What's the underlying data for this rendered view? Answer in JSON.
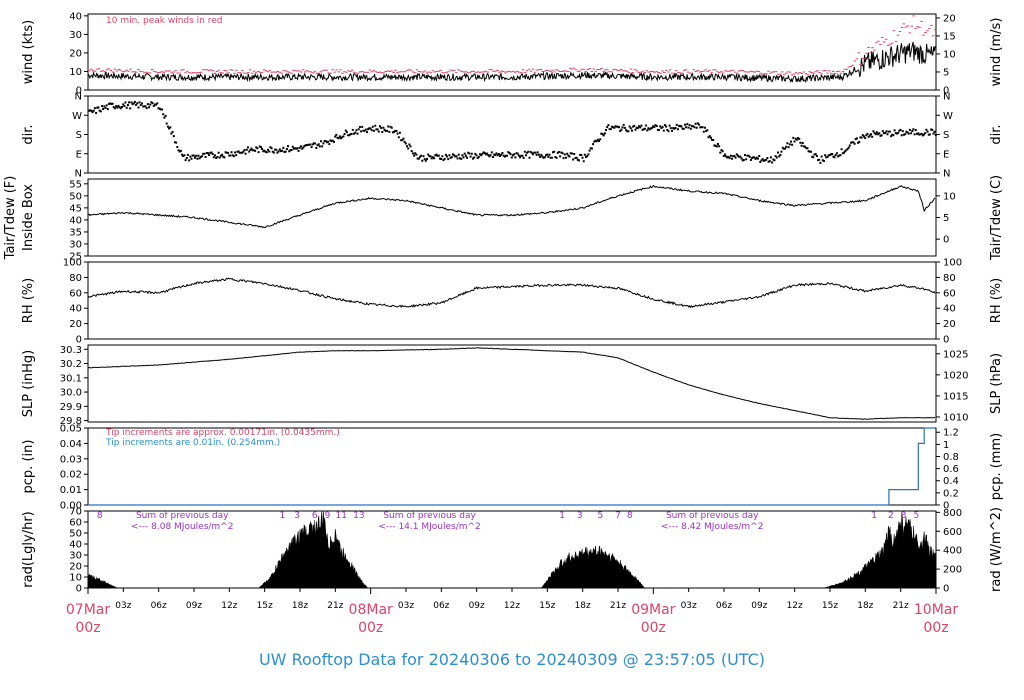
{
  "footer": {
    "title": "UW Rooftop Data for 20240306  to  20240309 @ 23:57:05  (UTC)"
  },
  "colors": {
    "data_line": "#000000",
    "peak_wind": "#dd4466",
    "precip_line": "#2b6fc0",
    "precip_note_red": "#dd4466",
    "precip_note_blue": "#2b8fd4",
    "day_label": "#dd4466",
    "footer": "#2b8fd4",
    "radiation_note": "#9933cc"
  },
  "x_axis": {
    "start": "2024-03-07T00:00Z",
    "end": "2024-03-10T00:00Z",
    "hour_ticks": [
      "03z",
      "06z",
      "09z",
      "12z",
      "15z",
      "18z",
      "21z"
    ],
    "days": [
      {
        "date": "07Mar",
        "hour": "00z"
      },
      {
        "date": "08Mar",
        "hour": "00z"
      },
      {
        "date": "09Mar",
        "hour": "00z"
      },
      {
        "date": "10Mar",
        "hour": "00z"
      }
    ]
  },
  "chart_data": [
    {
      "id": "wind",
      "type": "line",
      "ylabel_left": "wind (kts)",
      "ylabel_right": "wind (m/s)",
      "ylim": [
        0,
        41
      ],
      "left_ticks": [
        "0",
        "10",
        "20",
        "30",
        "40"
      ],
      "right_ticks": [
        "0",
        "5",
        "10",
        "15",
        "20"
      ],
      "annotation": "10 min. peak winds in red",
      "series": [
        {
          "name": "wind",
          "color": "#000000",
          "x": [
            "2024-03-07T00:00Z",
            "2024-03-07T06:00Z",
            "2024-03-07T12:00Z",
            "2024-03-07T18:00Z",
            "2024-03-08T00:00Z",
            "2024-03-08T06:00Z",
            "2024-03-08T12:00Z",
            "2024-03-08T18:00Z",
            "2024-03-09T00:00Z",
            "2024-03-09T06:00Z",
            "2024-03-09T12:00Z",
            "2024-03-09T16:00Z",
            "2024-03-09T18:00Z",
            "2024-03-09T20:00Z",
            "2024-03-09T22:00Z",
            "2024-03-09T23:55Z"
          ],
          "y": [
            8,
            7,
            7,
            7,
            7,
            7,
            7,
            8,
            7,
            7,
            6,
            7,
            14,
            18,
            21,
            18
          ]
        },
        {
          "name": "10 min. peak winds",
          "color": "#dd4466",
          "x": [
            "2024-03-07T00:00Z",
            "2024-03-07T06:00Z",
            "2024-03-07T12:00Z",
            "2024-03-07T18:00Z",
            "2024-03-08T00:00Z",
            "2024-03-08T06:00Z",
            "2024-03-08T12:00Z",
            "2024-03-08T18:00Z",
            "2024-03-09T00:00Z",
            "2024-03-09T06:00Z",
            "2024-03-09T12:00Z",
            "2024-03-09T16:00Z",
            "2024-03-09T18:00Z",
            "2024-03-09T20:00Z",
            "2024-03-09T22:00Z",
            "2024-03-09T23:55Z"
          ],
          "y": [
            11,
            10,
            10,
            10,
            10,
            10,
            10,
            11,
            10,
            10,
            9,
            10,
            20,
            28,
            36,
            30
          ]
        }
      ]
    },
    {
      "id": "dir",
      "type": "scatter",
      "ylabel_left": "dir.",
      "ylabel_right": "dir.",
      "ylim": [
        0,
        360
      ],
      "left_ticks": [
        "N",
        "E",
        "S",
        "W",
        "N"
      ],
      "right_ticks": [
        "N",
        "E",
        "S",
        "W",
        "N"
      ],
      "series": [
        {
          "name": "direction",
          "x": [
            "2024-03-07T00:00Z",
            "2024-03-07T01:00Z",
            "2024-03-07T02:00Z",
            "2024-03-07T04:00Z",
            "2024-03-07T06:00Z",
            "2024-03-07T08:00Z",
            "2024-03-07T10:00Z",
            "2024-03-07T12:00Z",
            "2024-03-07T14:00Z",
            "2024-03-07T16:00Z",
            "2024-03-07T18:00Z",
            "2024-03-07T20:00Z",
            "2024-03-07T22:00Z",
            "2024-03-08T00:00Z",
            "2024-03-08T02:00Z",
            "2024-03-08T04:00Z",
            "2024-03-08T08:00Z",
            "2024-03-08T12:00Z",
            "2024-03-08T16:00Z",
            "2024-03-08T18:00Z",
            "2024-03-08T20:00Z",
            "2024-03-08T22:00Z",
            "2024-03-09T00:00Z",
            "2024-03-09T02:00Z",
            "2024-03-09T04:00Z",
            "2024-03-09T06:00Z",
            "2024-03-09T08:00Z",
            "2024-03-09T10:00Z",
            "2024-03-09T12:00Z",
            "2024-03-09T14:00Z",
            "2024-03-09T16:00Z",
            "2024-03-09T18:00Z",
            "2024-03-09T20:00Z",
            "2024-03-09T22:00Z",
            "2024-03-09T23:55Z"
          ],
          "y": [
            280,
            300,
            315,
            318,
            315,
            70,
            80,
            90,
            110,
            110,
            115,
            140,
            190,
            210,
            200,
            70,
            80,
            85,
            85,
            70,
            210,
            210,
            210,
            210,
            220,
            80,
            70,
            60,
            160,
            60,
            100,
            180,
            185,
            190,
            190
          ]
        }
      ]
    },
    {
      "id": "tair",
      "type": "line",
      "ylabel_left": "Tair/Tdew (F)",
      "ylabel_left2": "Inside Box",
      "ylabel_right": "Tair/Tdew (C)",
      "ylim": [
        25,
        57
      ],
      "left_ticks": [
        "25",
        "30",
        "35",
        "40",
        "45",
        "50",
        "55"
      ],
      "right_ticks": [
        "0",
        "5",
        "10"
      ],
      "series": [
        {
          "name": "Tair",
          "color": "#000000",
          "x": [
            "2024-03-07T00:00Z",
            "2024-03-07T03:00Z",
            "2024-03-07T06:00Z",
            "2024-03-07T09:00Z",
            "2024-03-07T12:00Z",
            "2024-03-07T15:00Z",
            "2024-03-07T18:00Z",
            "2024-03-07T21:00Z",
            "2024-03-08T00:00Z",
            "2024-03-08T03:00Z",
            "2024-03-08T06:00Z",
            "2024-03-08T09:00Z",
            "2024-03-08T12:00Z",
            "2024-03-08T15:00Z",
            "2024-03-08T18:00Z",
            "2024-03-08T21:00Z",
            "2024-03-09T00:00Z",
            "2024-03-09T03:00Z",
            "2024-03-09T06:00Z",
            "2024-03-09T09:00Z",
            "2024-03-09T12:00Z",
            "2024-03-09T15:00Z",
            "2024-03-09T18:00Z",
            "2024-03-09T21:00Z",
            "2024-03-09T22:30Z",
            "2024-03-09T23:00Z",
            "2024-03-09T23:55Z"
          ],
          "y": [
            42,
            43,
            42,
            41,
            39,
            37,
            42,
            47,
            49,
            48,
            45,
            42,
            42,
            43,
            45,
            50,
            54,
            52,
            51,
            48,
            46,
            47,
            48,
            54,
            52,
            44,
            49
          ]
        }
      ]
    },
    {
      "id": "rh",
      "type": "line",
      "ylabel_left": "RH (%)",
      "ylabel_right": "RH (%)",
      "ylim": [
        0,
        100
      ],
      "left_ticks": [
        "0",
        "20",
        "40",
        "60",
        "80",
        "100"
      ],
      "right_ticks": [
        "0",
        "20",
        "40",
        "60",
        "80",
        "100"
      ],
      "series": [
        {
          "name": "RH",
          "color": "#000000",
          "x": [
            "2024-03-07T00:00Z",
            "2024-03-07T03:00Z",
            "2024-03-07T06:00Z",
            "2024-03-07T09:00Z",
            "2024-03-07T12:00Z",
            "2024-03-07T15:00Z",
            "2024-03-07T18:00Z",
            "2024-03-07T21:00Z",
            "2024-03-08T00:00Z",
            "2024-03-08T03:00Z",
            "2024-03-08T06:00Z",
            "2024-03-08T09:00Z",
            "2024-03-08T12:00Z",
            "2024-03-08T15:00Z",
            "2024-03-08T18:00Z",
            "2024-03-08T21:00Z",
            "2024-03-09T00:00Z",
            "2024-03-09T03:00Z",
            "2024-03-09T06:00Z",
            "2024-03-09T09:00Z",
            "2024-03-09T12:00Z",
            "2024-03-09T15:00Z",
            "2024-03-09T18:00Z",
            "2024-03-09T21:00Z",
            "2024-03-09T23:00Z",
            "2024-03-09T23:55Z"
          ],
          "y": [
            55,
            62,
            60,
            72,
            78,
            72,
            63,
            52,
            45,
            42,
            47,
            66,
            68,
            70,
            70,
            66,
            52,
            42,
            48,
            55,
            70,
            72,
            62,
            70,
            65,
            60
          ]
        }
      ]
    },
    {
      "id": "slp",
      "type": "line",
      "ylabel_left": "SLP (inHg)",
      "ylabel_right": "SLP (hPa)",
      "ylim": [
        29.79,
        30.33
      ],
      "left_ticks": [
        "29.8",
        "29.9",
        "30.0",
        "30.1",
        "30.2",
        "30.3"
      ],
      "right_ticks": [
        "1010",
        "1015",
        "1020",
        "1025"
      ],
      "series": [
        {
          "name": "SLP",
          "color": "#000000",
          "x": [
            "2024-03-07T00:00Z",
            "2024-03-07T06:00Z",
            "2024-03-07T12:00Z",
            "2024-03-07T18:00Z",
            "2024-03-07T21:00Z",
            "2024-03-08T00:00Z",
            "2024-03-08T06:00Z",
            "2024-03-08T09:00Z",
            "2024-03-08T12:00Z",
            "2024-03-08T18:00Z",
            "2024-03-08T21:00Z",
            "2024-03-09T00:00Z",
            "2024-03-09T03:00Z",
            "2024-03-09T06:00Z",
            "2024-03-09T09:00Z",
            "2024-03-09T12:00Z",
            "2024-03-09T15:00Z",
            "2024-03-09T18:00Z",
            "2024-03-09T21:00Z",
            "2024-03-09T23:55Z"
          ],
          "y": [
            30.17,
            30.19,
            30.23,
            30.28,
            30.29,
            30.29,
            30.3,
            30.31,
            30.3,
            30.28,
            30.24,
            30.14,
            30.05,
            29.98,
            29.92,
            29.87,
            29.82,
            29.81,
            29.82,
            29.82
          ]
        }
      ]
    },
    {
      "id": "pcp",
      "type": "line",
      "ylabel_left": "pcp. (in)",
      "ylabel_right": "pcp. (mm)",
      "ylim": [
        0,
        0.05
      ],
      "left_ticks": [
        "0.00",
        "0.01",
        "0.02",
        "0.03",
        "0.04",
        "0.05"
      ],
      "right_ticks": [
        "0",
        "0.2",
        "0.4",
        "0.6",
        "0.8",
        "1",
        "1.2"
      ],
      "notes": [
        "Tip increments are approx. 0.00171in. (0.0435mm.)",
        "Tip increments are 0.01in. (0.254mm.)"
      ],
      "series": [
        {
          "name": "precipitation",
          "color": "#2b6fc0",
          "x": [
            "2024-03-07T00:00Z",
            "2024-03-09T20:00Z",
            "2024-03-09T20:00Z",
            "2024-03-09T22:30Z",
            "2024-03-09T22:30Z",
            "2024-03-09T23:00Z",
            "2024-03-09T23:00Z",
            "2024-03-09T23:55Z"
          ],
          "y": [
            0.0,
            0.0,
            0.01,
            0.01,
            0.04,
            0.04,
            0.05,
            0.05
          ]
        }
      ]
    },
    {
      "id": "rad",
      "type": "area",
      "ylabel_left": "rad(Lgly/hr)",
      "ylabel_right": "rad (W/m^2)",
      "ylim": [
        0,
        70
      ],
      "left_ticks": [
        "0",
        "10",
        "20",
        "30",
        "40",
        "50",
        "60",
        "70"
      ],
      "right_ticks": [
        "0",
        "200",
        "400",
        "600",
        "800"
      ],
      "daily_totals": [
        {
          "line1": "Sum of previous day",
          "line2": "<--- 8.08 MJoules/m^2"
        },
        {
          "line1": "Sum of previous day",
          "line2": "<--- 14.1 MJoules/m^2"
        },
        {
          "line1": "Sum of previous day",
          "line2": "<--- 8.42 MJoules/m^2"
        }
      ],
      "hour_marks": [
        {
          "x": "2024-03-07T01:00Z",
          "label": "8"
        },
        {
          "x": "2024-03-07T16:30Z",
          "label": "1"
        },
        {
          "x": "2024-03-07T17:45Z",
          "label": "3"
        },
        {
          "x": "2024-03-07T19:15Z",
          "label": "6"
        },
        {
          "x": "2024-03-07T20:20Z",
          "label": "9"
        },
        {
          "x": "2024-03-07T21:30Z",
          "label": "11"
        },
        {
          "x": "2024-03-07T23:00Z",
          "label": "13"
        },
        {
          "x": "2024-03-08T16:15Z",
          "label": "1"
        },
        {
          "x": "2024-03-08T17:45Z",
          "label": "3"
        },
        {
          "x": "2024-03-08T19:30Z",
          "label": "5"
        },
        {
          "x": "2024-03-08T21:00Z",
          "label": "7"
        },
        {
          "x": "2024-03-08T22:00Z",
          "label": "8"
        },
        {
          "x": "2024-03-09T18:45Z",
          "label": "1"
        },
        {
          "x": "2024-03-09T20:10Z",
          "label": "2"
        },
        {
          "x": "2024-03-09T21:15Z",
          "label": "3"
        },
        {
          "x": "2024-03-09T22:20Z",
          "label": "5"
        }
      ],
      "series": [
        {
          "name": "radiation",
          "color": "#000000",
          "x": [
            "2024-03-07T00:00Z",
            "2024-03-07T01:00Z",
            "2024-03-07T02:30Z",
            "2024-03-07T14:30Z",
            "2024-03-07T15:30Z",
            "2024-03-07T16:30Z",
            "2024-03-07T17:30Z",
            "2024-03-07T18:30Z",
            "2024-03-07T19:30Z",
            "2024-03-07T20:00Z",
            "2024-03-07T20:30Z",
            "2024-03-07T21:00Z",
            "2024-03-07T21:30Z",
            "2024-03-07T22:00Z",
            "2024-03-07T22:30Z",
            "2024-03-07T23:00Z",
            "2024-03-07T23:45Z",
            "2024-03-08T12:00Z",
            "2024-03-08T14:30Z",
            "2024-03-08T15:30Z",
            "2024-03-08T16:30Z",
            "2024-03-08T17:30Z",
            "2024-03-08T18:30Z",
            "2024-03-08T19:30Z",
            "2024-03-08T20:30Z",
            "2024-03-08T21:30Z",
            "2024-03-08T22:30Z",
            "2024-03-08T23:15Z",
            "2024-03-09T12:00Z",
            "2024-03-09T14:30Z",
            "2024-03-09T16:00Z",
            "2024-03-09T17:30Z",
            "2024-03-09T18:30Z",
            "2024-03-09T19:30Z",
            "2024-03-09T20:00Z",
            "2024-03-09T20:30Z",
            "2024-03-09T21:00Z",
            "2024-03-09T21:30Z",
            "2024-03-09T22:00Z",
            "2024-03-09T22:30Z",
            "2024-03-09T23:00Z",
            "2024-03-09T23:30Z",
            "2024-03-09T23:55Z"
          ],
          "y": [
            12,
            8,
            0,
            0,
            10,
            30,
            45,
            55,
            60,
            65,
            40,
            55,
            35,
            30,
            20,
            10,
            0,
            0,
            0,
            15,
            28,
            32,
            35,
            36,
            30,
            20,
            10,
            0,
            0,
            0,
            5,
            15,
            25,
            35,
            55,
            45,
            65,
            60,
            55,
            40,
            50,
            35,
            30
          ]
        }
      ]
    }
  ]
}
